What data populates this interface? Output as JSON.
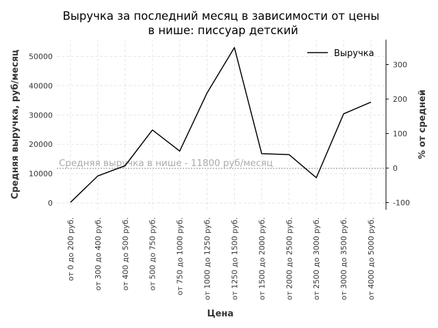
{
  "chart_data": {
    "type": "line",
    "title_line1": "Выручка за последний месяц в зависимости от цены",
    "title_line2": "в нише: писсуар детский",
    "xlabel": "Цена",
    "ylabel": "Средняя выручка, руб/месяц",
    "y2label": "% от средней",
    "categories": [
      "от 0 до 200 руб.",
      "от 300 до 400 руб.",
      "от 400 до 500 руб.",
      "от 500 до 750 руб.",
      "от 750 до 1000 руб.",
      "от 1000 до 1250 руб.",
      "от 1250 до 1500 руб.",
      "от 1500 до 2000 руб.",
      "от 2000 до 2500 руб.",
      "от 2500 до 3000 руб.",
      "от 3000 до 3500 руб.",
      "от 4000 до 5000 руб."
    ],
    "series": [
      {
        "name": "Выручка",
        "color": "#000000",
        "values": [
          200,
          9200,
          12700,
          24900,
          17700,
          37500,
          53000,
          16800,
          16500,
          8600,
          30400,
          34400
        ]
      }
    ],
    "ylim": [
      -2200,
      56000
    ],
    "yticks": [
      0,
      10000,
      20000,
      30000,
      40000,
      50000
    ],
    "y2ticks": [
      -100,
      0,
      100,
      200,
      300
    ],
    "average": {
      "value": 11800,
      "label": "Средняя выручка в нише - 11800 руб/месяц",
      "color": "#aaaaaa"
    },
    "grid": true,
    "legend_position": "top-right"
  }
}
